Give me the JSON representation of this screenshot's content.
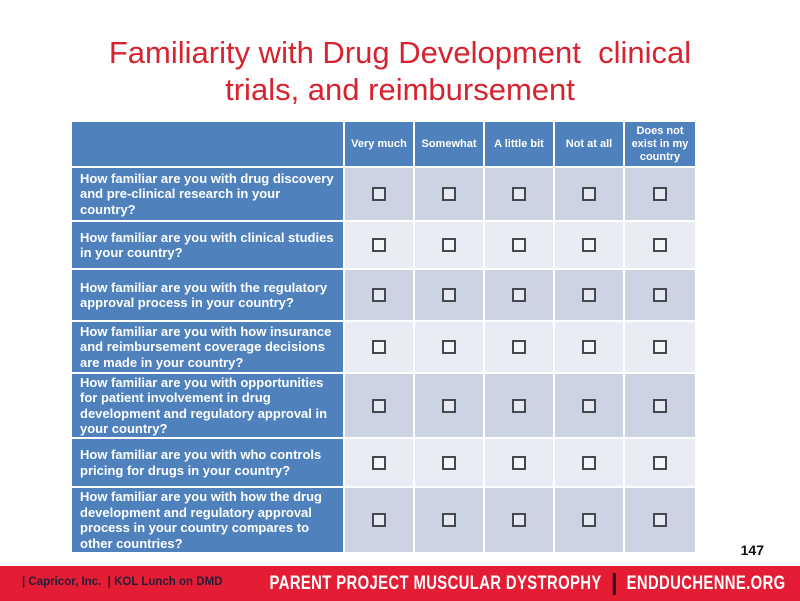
{
  "slide": {
    "title": "Familiarity with Drug Development  clinical trials, and reimbursement",
    "title_lines": [
      "Familiarity with Drug Development  clinical",
      "trials, and reimbursement"
    ],
    "page_number": "147"
  },
  "table": {
    "columns": [
      "Very much",
      "Somewhat",
      "A little bit",
      "Not at all",
      "Does not exist in my country"
    ],
    "rows": [
      {
        "question": "How familiar are you with drug discovery and pre-clinical research in your country?"
      },
      {
        "question": "How familiar are you with clinical studies in your country?"
      },
      {
        "question": "How familiar are you with the regulatory approval process in your country?"
      },
      {
        "question": "How familiar are you with how insurance and reimbursement coverage decisions are made in your country?"
      },
      {
        "question": "How familiar are you with opportunities for patient involvement in drug development and regulatory approval in your country?"
      },
      {
        "question": "How familiar are you with who controls pricing for drugs in your country?"
      },
      {
        "question": "How familiar are you with how the drug development and regulatory approval process in your country compares to other countries?"
      }
    ],
    "checkbox_state": "unchecked"
  },
  "footer": {
    "left_text": "| Capricor, Inc.  | KOL Lunch on DMD",
    "brand": "PARENT PROJECT MUSCULAR DYSTROPHY",
    "site": "ENDDUCHENNE.ORG"
  },
  "colors": {
    "title_red": "#d7222f",
    "footer_red": "#e41d34",
    "header_blue": "#4f81bd",
    "band_dark": "#ccd3e3",
    "band_light": "#e9ecf4"
  }
}
